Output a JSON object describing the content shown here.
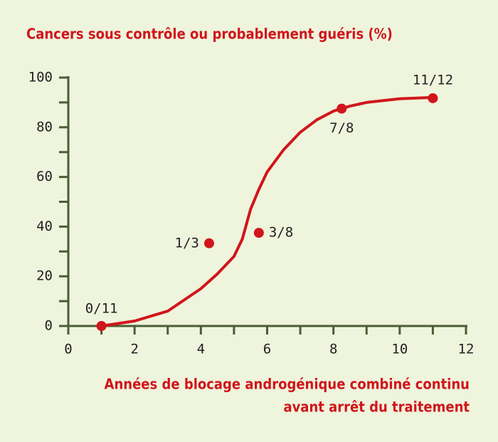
{
  "chart_data": {
    "type": "scatter",
    "title": "Cancers sous contrôle ou probablement guéris (%)",
    "xlabel": [
      "Années de blocage androgénique combiné continu",
      "avant arrêt du traitement"
    ],
    "x": [
      1,
      4.25,
      5.75,
      8.25,
      11
    ],
    "values": [
      0,
      33.3,
      37.5,
      87.5,
      91.7
    ],
    "point_labels": [
      "0/11",
      "1/3",
      "3/8",
      "7/8",
      "11/12"
    ],
    "color": "#d0161b",
    "curve": {
      "x": [
        1,
        2,
        3,
        4,
        4.5,
        5,
        5.25,
        5.5,
        5.75,
        6,
        6.5,
        7,
        7.5,
        8,
        8.5,
        9,
        10,
        11
      ],
      "values": [
        0,
        2,
        6,
        15,
        21,
        28,
        35,
        47,
        55,
        62,
        71,
        78,
        83,
        86.5,
        88.5,
        90,
        91.5,
        92
      ]
    },
    "xlim": [
      0,
      12
    ],
    "xticks": [
      0,
      2,
      4,
      6,
      8,
      10,
      12
    ],
    "xminor": [
      1,
      3,
      5,
      7,
      9,
      11
    ],
    "ylim": [
      0,
      100
    ],
    "yticks": [
      0,
      20,
      40,
      60,
      80,
      100
    ],
    "yminor": [
      10,
      30,
      50,
      70,
      90
    ]
  }
}
